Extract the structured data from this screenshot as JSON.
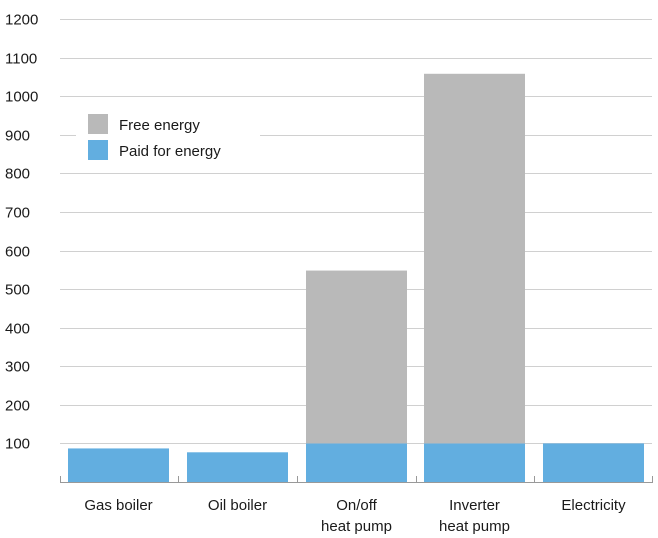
{
  "chart_data": {
    "type": "bar",
    "stacked": true,
    "categories": [
      [
        "Gas boiler"
      ],
      [
        "Oil boiler"
      ],
      [
        "On/off",
        "heat pump"
      ],
      [
        "Inverter",
        "heat pump"
      ],
      [
        "Electricity"
      ]
    ],
    "series": [
      {
        "name": "Paid for energy",
        "color": "#62aee0",
        "values": [
          87,
          77,
          100,
          100,
          100
        ]
      },
      {
        "name": "Free energy",
        "color": "#b9b9b9",
        "values": [
          0,
          0,
          448,
          958,
          0
        ]
      }
    ],
    "legend": {
      "items": [
        {
          "name": "Free energy",
          "color": "#b9b9b9"
        },
        {
          "name": "Paid for energy",
          "color": "#62aee0"
        }
      ],
      "placement": "upper-left"
    },
    "yticks": [
      100,
      200,
      300,
      400,
      500,
      600,
      700,
      800,
      900,
      1000,
      1100,
      1200
    ],
    "ylim": [
      0,
      1200
    ],
    "grid": true,
    "title": "",
    "xlabel": "",
    "ylabel": ""
  }
}
